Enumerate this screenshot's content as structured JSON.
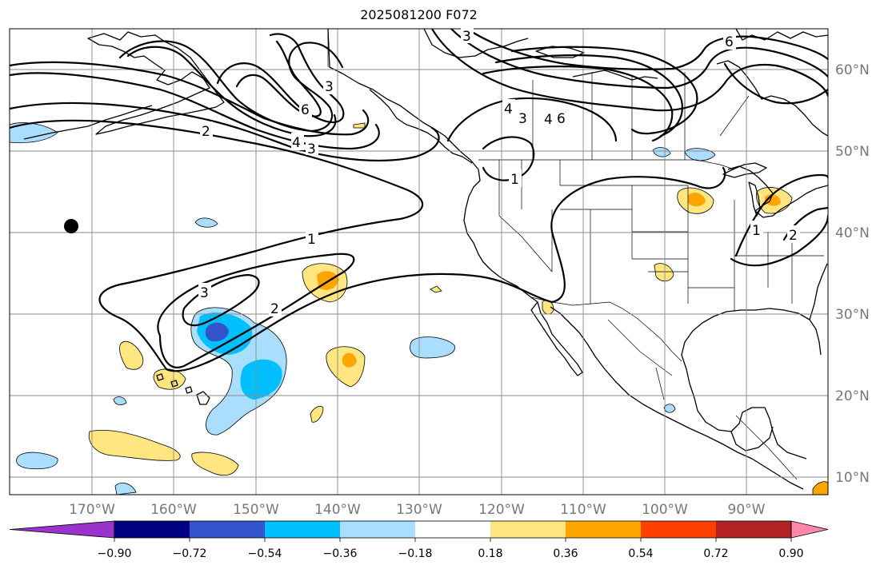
{
  "title": "2025081200 F072",
  "map": {
    "lon_labels": [
      "170°W",
      "160°W",
      "150°W",
      "140°W",
      "130°W",
      "120°W",
      "110°W",
      "100°W",
      "90°W"
    ],
    "lat_labels": [
      "60°N",
      "50°N",
      "40°N",
      "30°N",
      "20°N",
      "10°N"
    ],
    "contour_labels": [
      "1",
      "2",
      "3",
      "4",
      "6"
    ],
    "colorbar": {
      "ticks": [
        "−0.90",
        "−0.72",
        "−0.54",
        "−0.36",
        "−0.18",
        "0.18",
        "0.36",
        "0.54",
        "0.72",
        "0.90"
      ],
      "colors": [
        "#9933cc",
        "#000080",
        "#3355cc",
        "#00bfff",
        "#aadeff",
        "#ffffff",
        "#ffe680",
        "#ffa500",
        "#ff4000",
        "#b22222",
        "#ff88aa"
      ]
    },
    "shading": {
      "neg_light": "#aadeff",
      "neg_mid": "#00bfff",
      "neg_dark": "#3355cc",
      "pos_light": "#ffe680",
      "pos_mid": "#ffa500"
    },
    "marker_color": "#000000"
  }
}
